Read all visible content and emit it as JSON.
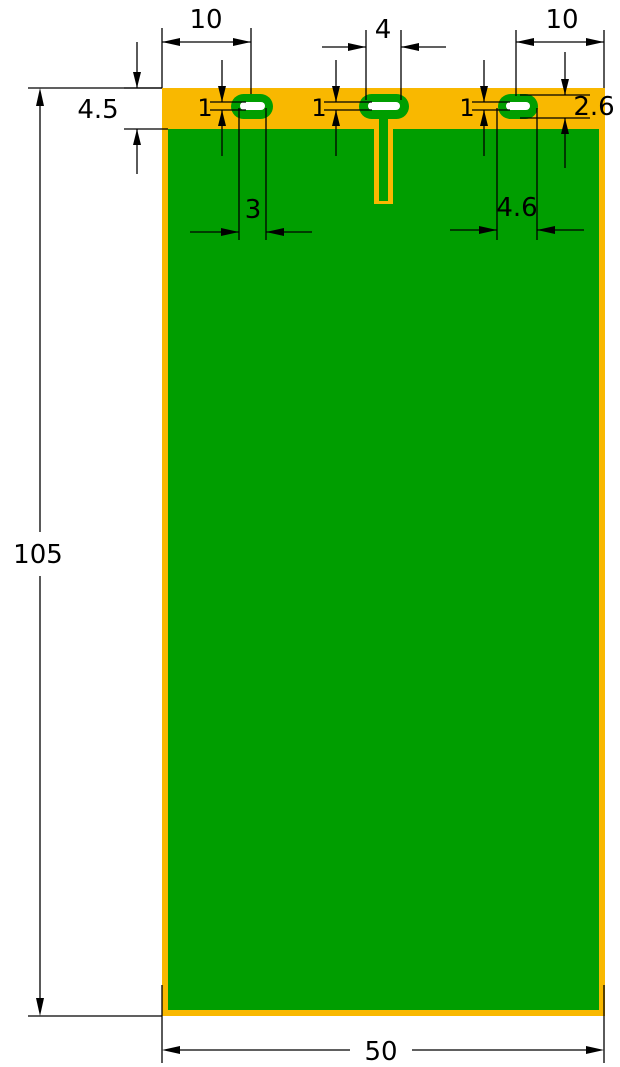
{
  "colors": {
    "substrate": "#f9b800",
    "copper": "#009e00",
    "slot_fill": "#ffffff",
    "dimension": "#000000"
  },
  "dimensions": {
    "overall_width": "50",
    "overall_height": "105",
    "top_strip_height": "4.5",
    "left_offset": "10",
    "right_offset": "10",
    "center_slot_length": "4",
    "left_slot_length": "3",
    "right_slot_length": "4.6",
    "slot_width_left": "1",
    "slot_width_center": "1",
    "slot_width_right": "1",
    "right_ring_height": "2.6"
  }
}
